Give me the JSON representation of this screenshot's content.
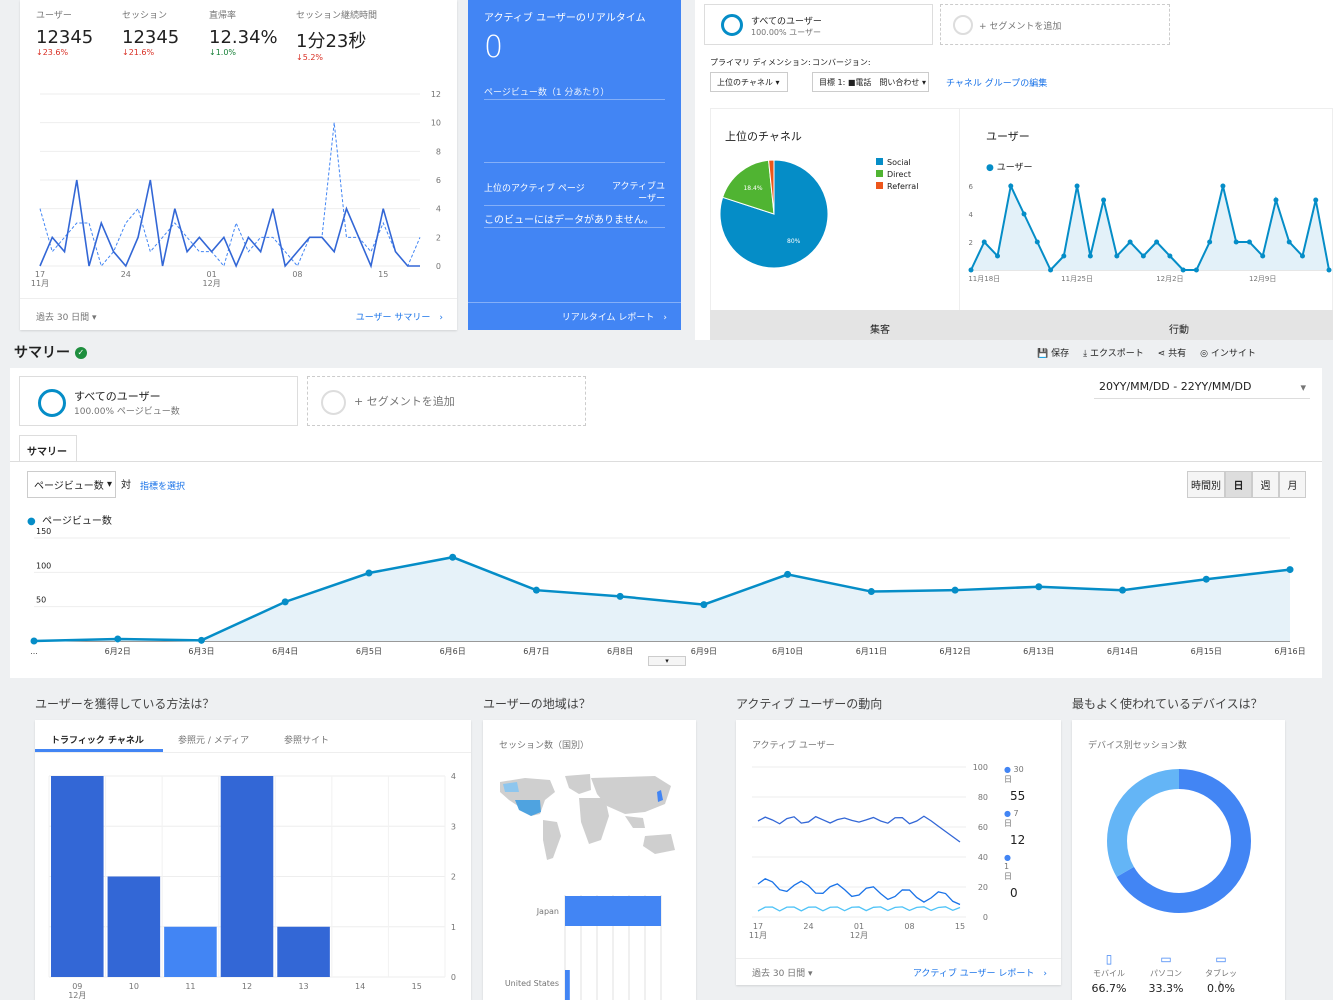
{
  "metrics": [
    {
      "label": "ユーザー",
      "value": "12345",
      "change": "↓23.6%",
      "dir": "down"
    },
    {
      "label": "セッション",
      "value": "12345",
      "change": "↓21.6%",
      "dir": "down"
    },
    {
      "label": "直帰率",
      "value": "12.34%",
      "change": "↓1.0%",
      "dir": "up"
    },
    {
      "label": "セッション継続時間",
      "value": "1分23秒",
      "change": "↓5.2%",
      "dir": "down"
    }
  ],
  "overview_chart": {
    "y_ticks": [
      "12",
      "10",
      "8",
      "6",
      "4",
      "2",
      "0"
    ],
    "x_ticks": [
      "17\n11月",
      "24",
      "01\n12月",
      "08",
      "15"
    ],
    "series_solid": [
      0,
      2,
      1,
      6,
      0,
      3,
      1,
      0,
      2,
      6,
      0,
      4,
      1,
      2,
      1,
      2,
      0,
      2,
      1,
      4,
      0,
      1,
      2,
      2,
      1,
      4,
      2,
      0,
      4,
      1,
      0,
      0
    ],
    "series_dashed": [
      4,
      1,
      2,
      3,
      3,
      0,
      1,
      3,
      4,
      1,
      2,
      3,
      2,
      1,
      1,
      0,
      3,
      1,
      2,
      2,
      1,
      0,
      2,
      2,
      10,
      2,
      2,
      1,
      3,
      1,
      0,
      2
    ]
  },
  "overview_footer": {
    "range": "過去 30 日間",
    "link": "ユーザー サマリー"
  },
  "realtime": {
    "title": "アクティブ ユーザーのリアルタイム",
    "value": "0",
    "pv_label": "ページビュー数（1 分あたり）",
    "col1": "上位のアクティブ ページ",
    "col2": "アクティブユ\nーザー",
    "empty": "このビューにはデータがありません。",
    "link": "リアルタイム レポート"
  },
  "top_segment": {
    "name": "すべてのユーザー",
    "sub": "100.00% ユーザー",
    "add": "+ セグメントを追加"
  },
  "channel_controls": {
    "dim_label": "プライマリ ディメンション:",
    "conv_label": "コンバージョン:",
    "dim_value": "上位のチャネル",
    "conv_value": "目標 1: ■電話　問い合わせ",
    "edit_link": "チャネル グループの編集"
  },
  "channel_pie": {
    "title": "上位のチャネル",
    "legend": [
      {
        "name": "Social",
        "color": "#058dc7"
      },
      {
        "name": "Direct",
        "color": "#50b432"
      },
      {
        "name": "Referral",
        "color": "#ed561b"
      }
    ],
    "slices": [
      {
        "name": "Social",
        "value": 80,
        "label": "80%"
      },
      {
        "name": "Direct",
        "value": 18.4,
        "label": "18.4%"
      },
      {
        "name": "Referral",
        "value": 1.6,
        "label": ""
      }
    ]
  },
  "users_line": {
    "title": "ユーザー",
    "legend": "ユーザー",
    "y_ticks": [
      "6",
      "4",
      "2"
    ],
    "x_ticks": [
      "11月18日",
      "11月25日",
      "12月2日",
      "12月9日"
    ],
    "values": [
      0,
      2,
      1,
      6,
      4,
      2,
      0,
      1,
      6,
      1,
      5,
      1,
      2,
      1,
      2,
      1,
      0,
      0,
      2,
      6,
      2,
      2,
      1,
      5,
      2,
      1,
      5,
      0
    ]
  },
  "tabs_bottom": {
    "left": "集客",
    "right": "行動"
  },
  "summary": {
    "title": "サマリー",
    "actions": [
      "保存",
      "エクスポート",
      "共有",
      "インサイト"
    ],
    "segment_name": "すべてのユーザー",
    "segment_sub": "100.00% ページビュー数",
    "add_segment": "+ セグメントを追加",
    "date_range": "20YY/MM/DD - 22YY/MM/DD",
    "tab": "サマリー",
    "metric_select": "ページビュー数",
    "vs": "対",
    "select_metric_link": "指標を選択",
    "granularity": [
      "時間別",
      "日",
      "週",
      "月"
    ],
    "legend": "ページビュー数"
  },
  "pageviews_chart": {
    "y_ticks": [
      "150",
      "100",
      "50"
    ],
    "x_labels": [
      "...",
      "6月2日",
      "6月3日",
      "6月4日",
      "6月5日",
      "6月6日",
      "6月7日",
      "6月8日",
      "6月9日",
      "6月10日",
      "6月11日",
      "6月12日",
      "6月13日",
      "6月14日",
      "6月15日",
      "6月16日"
    ],
    "values": [
      0,
      3,
      1,
      57,
      99,
      122,
      74,
      65,
      53,
      97,
      72,
      74,
      79,
      74,
      90,
      104
    ]
  },
  "acquire": {
    "title": "ユーザーを獲得している方法は？",
    "tabs": [
      "トラフィック チャネル",
      "参照元 / メディア",
      "参照サイト"
    ],
    "y_ticks": [
      "4",
      "3",
      "2",
      "1",
      "0"
    ],
    "x_ticks": [
      "09\n12月",
      "10",
      "11",
      "12",
      "13",
      "14",
      "15"
    ],
    "values": [
      4,
      2,
      1,
      4,
      1,
      0,
      0
    ]
  },
  "geo": {
    "title": "ユーザーの地域は？",
    "subtitle": "セッション数（国別）",
    "countries": [
      {
        "name": "Japan",
        "value": 100
      },
      {
        "name": "United States",
        "value": 5
      }
    ]
  },
  "active": {
    "title": "アクティブ ユーザーの動向",
    "subtitle": "アクティブ ユーザー",
    "y_ticks": [
      "100",
      "80",
      "60",
      "40",
      "20",
      "0"
    ],
    "x_ticks": [
      "17\n11月",
      "24",
      "01\n12月",
      "08",
      "15"
    ],
    "legend": [
      {
        "label": "30 日",
        "value": "55"
      },
      {
        "label": "7 日",
        "value": "12"
      },
      {
        "label": "1 日",
        "value": "0"
      }
    ],
    "footer_range": "過去 30 日間",
    "footer_link": "アクティブ ユーザー レポート"
  },
  "devices": {
    "title": "最もよく使われているデバイスは？",
    "subtitle": "デバイス別セッション数",
    "items": [
      {
        "name": "モバイル",
        "value": "66.7%"
      },
      {
        "name": "パソコン",
        "value": "33.3%"
      },
      {
        "name": "タブレット",
        "value": "0.0%"
      }
    ]
  },
  "colors": {
    "accent": "#4285f4",
    "line": "#058dc7",
    "down": "#d93025",
    "up": "#188038"
  }
}
